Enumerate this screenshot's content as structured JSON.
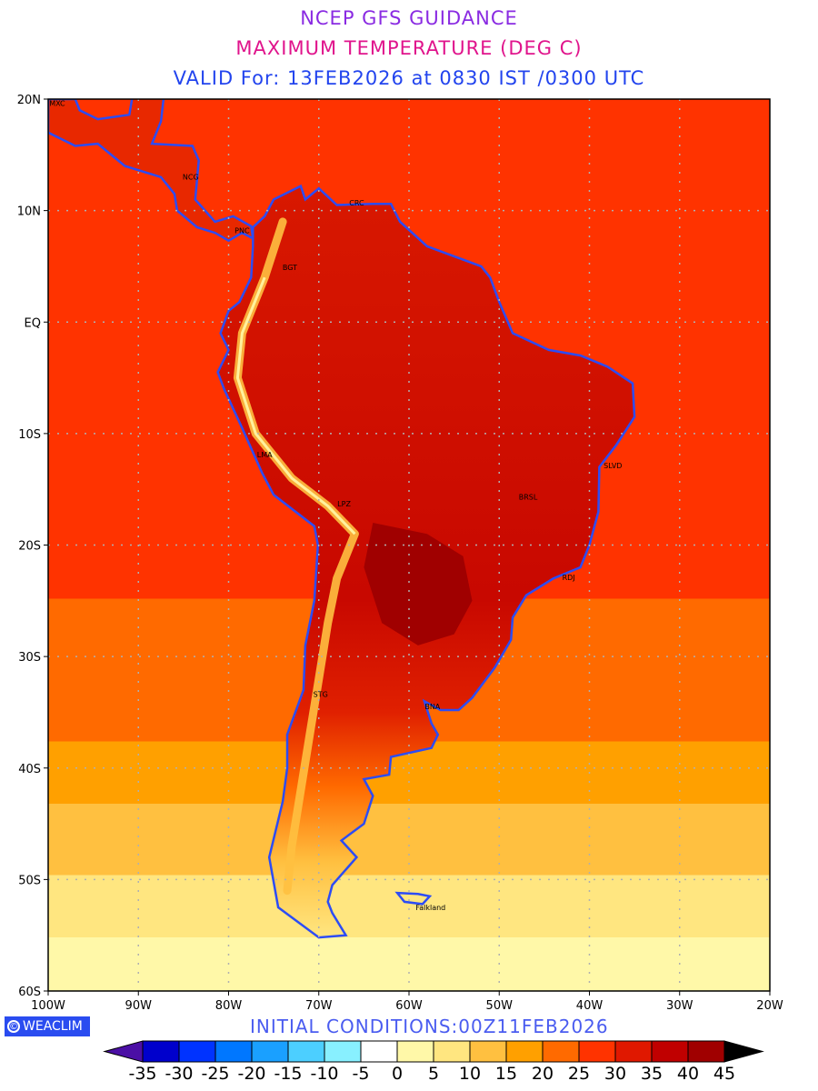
{
  "header": {
    "title": "NCEP GFS GUIDANCE",
    "subtitle": "MAXIMUM TEMPERATURE (DEG C)",
    "valid": "VALID For: 13FEB2026 at 0830 IST /0300 UTC"
  },
  "map": {
    "lon_range": [
      -100,
      -20
    ],
    "lat_range": [
      -60,
      20
    ],
    "lon_labels": [
      "100W",
      "90W",
      "80W",
      "70W",
      "60W",
      "50W",
      "40W",
      "30W",
      "20W"
    ],
    "lat_labels": [
      "20N",
      "10N",
      "EQ",
      "10S",
      "20S",
      "30S",
      "40S",
      "50S",
      "60S"
    ],
    "cities": [
      {
        "name": "MXC",
        "lon": -99,
        "lat": 19.7
      },
      {
        "name": "NCG",
        "lon": -84.2,
        "lat": 13.1
      },
      {
        "name": "PNC",
        "lon": -78.5,
        "lat": 8.3
      },
      {
        "name": "CRC",
        "lon": -65.8,
        "lat": 10.8
      },
      {
        "name": "BGT",
        "lon": -73.2,
        "lat": 5
      },
      {
        "name": "LMA",
        "lon": -76,
        "lat": -11.8
      },
      {
        "name": "LPZ",
        "lon": -67.2,
        "lat": -16.2
      },
      {
        "name": "SLVD",
        "lon": -37.4,
        "lat": -12.8
      },
      {
        "name": "BRSL",
        "lon": -46.8,
        "lat": -15.6
      },
      {
        "name": "RDJ",
        "lon": -42.3,
        "lat": -22.8
      },
      {
        "name": "STG",
        "lon": -69.8,
        "lat": -33.3
      },
      {
        "name": "BNA",
        "lon": -57.4,
        "lat": -34.4
      },
      {
        "name": "Falkland",
        "lon": -57.6,
        "lat": -52.4
      }
    ],
    "coast_color": "#2c4cf5"
  },
  "footer": {
    "logo": "WEACLIM",
    "logo_symbol": "©",
    "initial_conditions": "INITIAL  CONDITIONS:00Z11FEB2026"
  },
  "colorbar": {
    "under_color": "#4b0fa5",
    "over_color": "#000000",
    "colors": [
      "#0000cc",
      "#0033ff",
      "#0077ff",
      "#1aa0ff",
      "#4ccfff",
      "#88f0ff",
      "#ffffff",
      "#fff8a8",
      "#ffe680",
      "#ffc040",
      "#ffa000",
      "#ff6a00",
      "#ff3300",
      "#e01800",
      "#c00000",
      "#a00000"
    ],
    "labels": [
      "-35",
      "-30",
      "-25",
      "-20",
      "-15",
      "-10",
      "-5",
      "0",
      "5",
      "10",
      "15",
      "20",
      "25",
      "30",
      "35",
      "40",
      "45"
    ]
  }
}
